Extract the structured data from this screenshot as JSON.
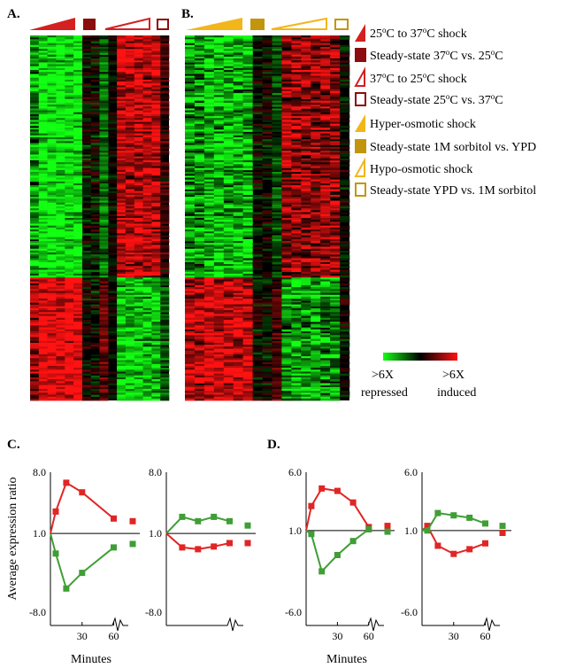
{
  "colors": {
    "red": "#d42020",
    "dark_red": "#8b0d0d",
    "gold": "#f2b61a",
    "dark_gold": "#c2960c",
    "plot_red": "#e12525",
    "plot_green": "#3f9e35",
    "heat_green": "#13ff13",
    "heat_red": "#ff1212"
  },
  "panels": {
    "a": "A.",
    "b": "B.",
    "c": "C.",
    "d": "D."
  },
  "legend": [
    {
      "symbol": "wedge-filled",
      "color": "red",
      "text_parts": [
        "25",
        "o",
        "C  to 37",
        "o",
        "C shock"
      ]
    },
    {
      "symbol": "square-filled",
      "color": "dark_red",
      "text_parts": [
        "Steady-state 37",
        "o",
        "C vs. 25",
        "o",
        "C"
      ]
    },
    {
      "symbol": "wedge-open",
      "color": "red",
      "text_parts": [
        "37",
        "o",
        "C  to 25",
        "o",
        "C shock"
      ]
    },
    {
      "symbol": "square-open",
      "color": "dark_red",
      "text_parts": [
        "Steady-state 25",
        "o",
        "C vs. 37",
        "o",
        "C"
      ]
    },
    {
      "symbol": "wedge-filled",
      "color": "gold",
      "text_parts": [
        "Hyper-osmotic shock"
      ]
    },
    {
      "symbol": "square-filled",
      "color": "dark_gold",
      "text_parts": [
        "Steady-state 1M sorbitol vs. YPD"
      ]
    },
    {
      "symbol": "wedge-open",
      "color": "gold",
      "text_parts": [
        "Hypo-osmotic shock"
      ]
    },
    {
      "symbol": "square-open",
      "color": "dark_gold",
      "text_parts": [
        "Steady-state YPD vs. 1M sorbitol"
      ]
    }
  ],
  "colorbar": {
    "left_label_1": ">6X",
    "left_label_2": "repressed",
    "right_label_1": ">6X",
    "right_label_2": "induced"
  },
  "chart_data": [
    {
      "type": "line",
      "panel": "C",
      "plot": "left",
      "ylabel": "Average expression ratio",
      "xlabel": "Minutes",
      "ylim": [
        -8.0,
        8.0
      ],
      "yticks": [
        "8.0",
        "1.0",
        "-8.0"
      ],
      "xticks": [
        "30",
        "60"
      ],
      "x": [
        0,
        5,
        15,
        30,
        60
      ],
      "series": [
        {
          "color": "plot_red",
          "values": [
            1.0,
            3.5,
            6.8,
            5.7,
            2.7
          ],
          "steady_state": 2.4
        },
        {
          "color": "plot_green",
          "values": [
            1.0,
            -1.3,
            -5.3,
            -3.5,
            -0.6
          ],
          "steady_state": -0.2
        }
      ]
    },
    {
      "type": "line",
      "panel": "C",
      "plot": "right",
      "ylim": [
        -8.0,
        8.0
      ],
      "yticks": [
        "8.0",
        "1.0",
        "-8.0"
      ],
      "xticks": [],
      "x": [
        0,
        15,
        30,
        45,
        60
      ],
      "series": [
        {
          "color": "plot_green",
          "values": [
            1.0,
            2.9,
            2.4,
            2.9,
            2.4
          ],
          "steady_state": 1.9
        },
        {
          "color": "plot_red",
          "values": [
            1.0,
            -0.6,
            -0.8,
            -0.5,
            -0.1
          ],
          "steady_state": -0.1
        }
      ]
    },
    {
      "type": "line",
      "panel": "D",
      "plot": "left",
      "xlabel": "Minutes",
      "ylim": [
        -6.0,
        6.0
      ],
      "yticks": [
        "6.0",
        "1.0",
        "-6.0"
      ],
      "xticks": [
        "30",
        "60"
      ],
      "x": [
        0,
        5,
        15,
        30,
        45,
        60
      ],
      "series": [
        {
          "color": "plot_red",
          "values": [
            1.0,
            3.1,
            4.6,
            4.4,
            3.4,
            1.3
          ],
          "steady_state": 1.4
        },
        {
          "color": "plot_green",
          "values": [
            1.0,
            0.7,
            -2.5,
            -1.1,
            0.1,
            1.1
          ],
          "steady_state": 0.9
        }
      ]
    },
    {
      "type": "line",
      "panel": "D",
      "plot": "right",
      "ylim": [
        -6.0,
        6.0
      ],
      "yticks": [
        "6.0",
        "1.0",
        "-6.0"
      ],
      "xticks": [
        "30",
        "60"
      ],
      "x": [
        0,
        5,
        15,
        30,
        45,
        60
      ],
      "series": [
        {
          "color": "plot_red",
          "values": [
            1.0,
            1.4,
            -0.3,
            -1.0,
            -0.6,
            -0.1
          ],
          "steady_state": 0.8
        },
        {
          "color": "plot_green",
          "values": [
            1.0,
            1.0,
            2.5,
            2.3,
            2.1,
            1.6
          ],
          "steady_state": 1.4
        }
      ]
    }
  ]
}
